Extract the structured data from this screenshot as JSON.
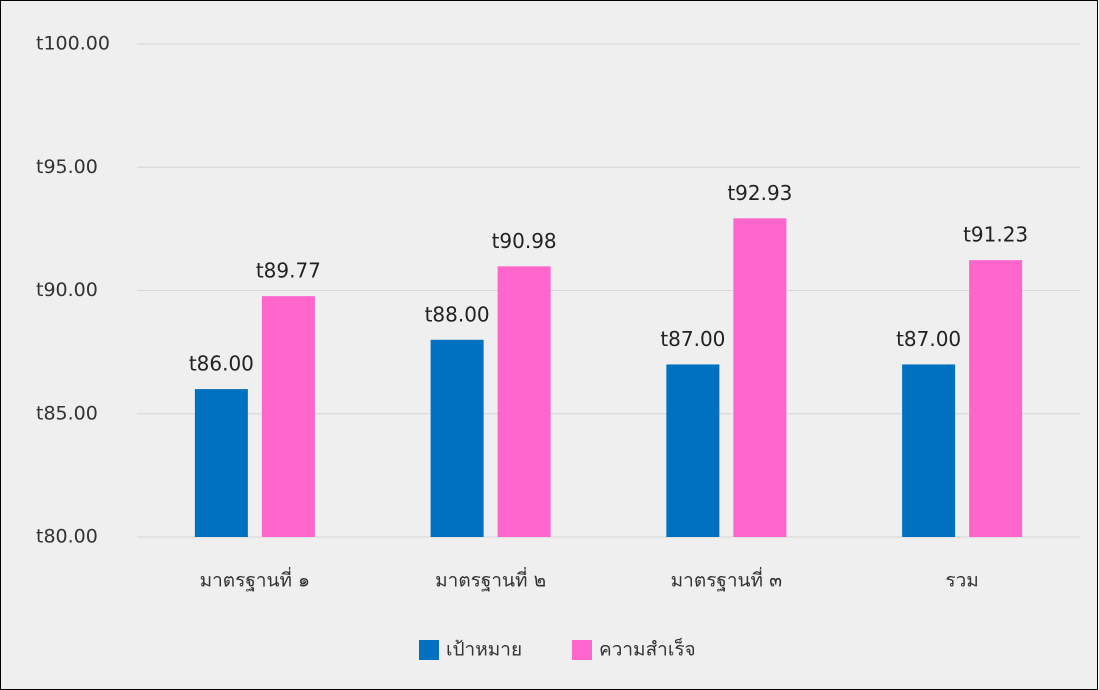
{
  "chart_data": {
    "type": "bar",
    "categories": [
      "มาตรฐานที่ ๑",
      "มาตรฐานที่ ๒",
      "มาตรฐานที่ ๓",
      "รวม"
    ],
    "series": [
      {
        "name": "เป้าหมาย",
        "color": "#0070c0",
        "values": [
          86,
          88,
          87,
          87
        ],
        "value_labels": [
          "t86.00",
          "t88.00",
          "t87.00",
          "t87.00"
        ]
      },
      {
        "name": "ความสำเร็จ",
        "color": "#ff66cc",
        "values": [
          89.77,
          90.98,
          92.93,
          91.23
        ],
        "value_labels": [
          "t89.77",
          "t90.98",
          "t92.93",
          "t91.23"
        ]
      }
    ],
    "ylim": [
      80,
      100
    ],
    "yticks": [
      {
        "value": 80,
        "label": "t80.00"
      },
      {
        "value": 85,
        "label": "t85.00"
      },
      {
        "value": 90,
        "label": "t90.00"
      },
      {
        "value": 95,
        "label": "t95.00"
      },
      {
        "value": 100,
        "label": "t100.00"
      }
    ],
    "grid": true,
    "legend": "bottom"
  }
}
